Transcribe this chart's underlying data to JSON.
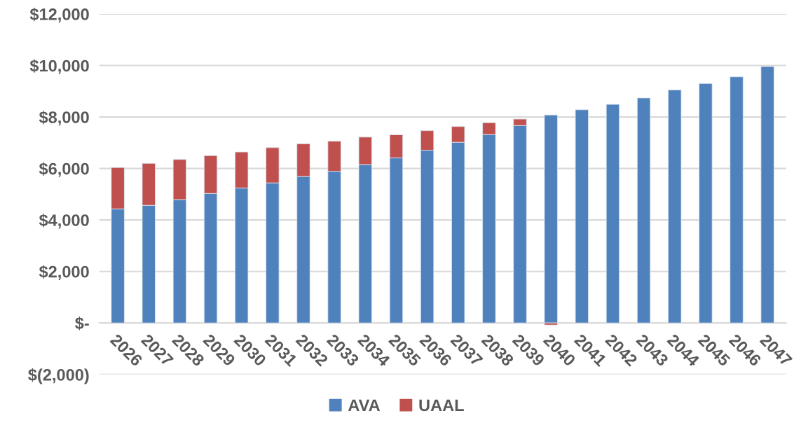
{
  "chart_data": {
    "type": "bar",
    "stacked": true,
    "categories": [
      "2026",
      "2027",
      "2028",
      "2029",
      "2030",
      "2031",
      "2032",
      "2033",
      "2034",
      "2035",
      "2036",
      "2037",
      "2038",
      "2039",
      "2040",
      "2041",
      "2042",
      "2043",
      "2044",
      "2045",
      "2046",
      "2047"
    ],
    "series": [
      {
        "name": "AVA",
        "color": "#4f81bd",
        "values": [
          4430,
          4570,
          4790,
          5030,
          5240,
          5440,
          5690,
          5890,
          6150,
          6410,
          6710,
          7020,
          7320,
          7670,
          8080,
          8280,
          8490,
          8740,
          9050,
          9300,
          9560,
          9960
        ]
      },
      {
        "name": "UAAL",
        "color": "#c0504d",
        "values": [
          1610,
          1630,
          1560,
          1470,
          1400,
          1370,
          1270,
          1170,
          1070,
          900,
          760,
          610,
          460,
          250,
          -80,
          null,
          null,
          null,
          null,
          null,
          null,
          null
        ]
      }
    ],
    "ylim": [
      -2000,
      12000
    ],
    "yticks": [
      {
        "value": -2000,
        "label": "$(2,000)"
      },
      {
        "value": 0,
        "label": "$-"
      },
      {
        "value": 2000,
        "label": "$2,000"
      },
      {
        "value": 4000,
        "label": "$4,000"
      },
      {
        "value": 6000,
        "label": "$6,000"
      },
      {
        "value": 8000,
        "label": "$8,000"
      },
      {
        "value": 10000,
        "label": "$10,000"
      },
      {
        "value": 12000,
        "label": "$12,000"
      }
    ],
    "grid": "y",
    "legend": "bottom"
  }
}
